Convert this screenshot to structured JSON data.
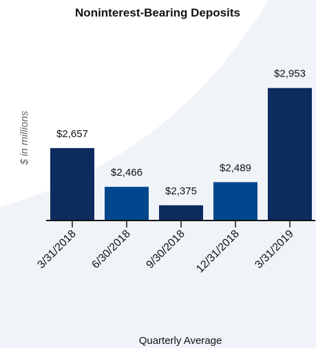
{
  "chart_data": {
    "type": "bar",
    "title": "Noninterest-Bearing Deposits",
    "categories": [
      "3/31/2018",
      "6/30/2018",
      "9/30/2018",
      "12/31/2018",
      "3/31/2019"
    ],
    "values": [
      2657,
      2466,
      2375,
      2489,
      2953
    ],
    "value_labels": [
      "$2,657",
      "$2,466",
      "$2,375",
      "$2,489",
      "$2,953"
    ],
    "colors": [
      "#0c2b5e",
      "#00478d",
      "#0c2b5e",
      "#00478d",
      "#0c2b5e"
    ],
    "ylim": [
      2300,
      3200
    ],
    "ylabel": "$ in millions",
    "xlabel": "Quarterly Average"
  }
}
